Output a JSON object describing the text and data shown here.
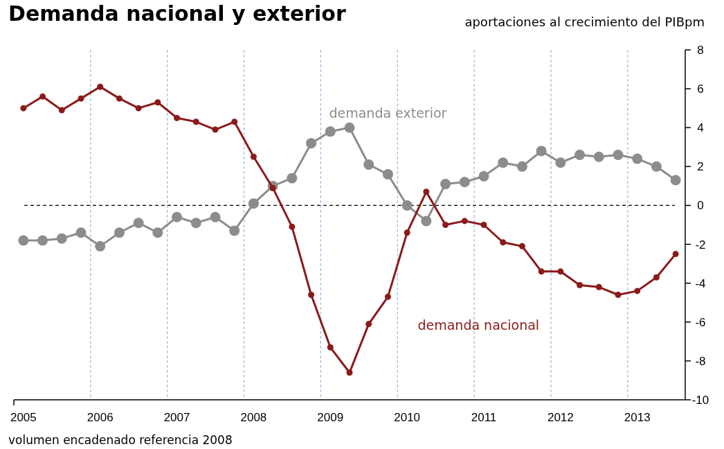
{
  "chart_data": {
    "type": "line",
    "title": "Demanda nacional y exterior",
    "subtitle": "aportaciones al crecimiento del PIBpm",
    "annotations": [
      "volumen encadenado referencia 2008"
    ],
    "categories": [
      "2005",
      null,
      null,
      null,
      "2006",
      null,
      null,
      null,
      "2007",
      null,
      null,
      null,
      "2008",
      null,
      null,
      null,
      "2009",
      null,
      null,
      null,
      "2010",
      null,
      null,
      null,
      "2011",
      null,
      null,
      null,
      "2012",
      null,
      null,
      null,
      "2013",
      null,
      null
    ],
    "series": [
      {
        "name": "demanda exterior",
        "color": "#8c8c8c",
        "values": [
          -1.8,
          -1.8,
          -1.7,
          -1.4,
          -2.1,
          -1.4,
          -0.9,
          -1.4,
          -0.6,
          -0.9,
          -0.6,
          -1.3,
          0.1,
          1.0,
          1.4,
          3.2,
          3.8,
          4.0,
          2.1,
          1.6,
          0.0,
          -0.8,
          1.1,
          1.2,
          1.5,
          2.2,
          2.0,
          2.8,
          2.2,
          2.6,
          2.5,
          2.6,
          2.4,
          2.0,
          1.3
        ]
      },
      {
        "name": "demanda nacional",
        "color": "#8b1a1a",
        "values": [
          5.0,
          5.6,
          4.9,
          5.5,
          6.1,
          5.5,
          5.0,
          5.3,
          4.5,
          4.3,
          3.9,
          4.3,
          2.5,
          0.9,
          -1.1,
          -4.6,
          -7.3,
          -8.6,
          -6.1,
          -4.7,
          -1.4,
          0.7,
          -1.0,
          -0.8,
          -1.0,
          -1.9,
          -2.1,
          -3.4,
          -3.4,
          -4.1,
          -4.2,
          -4.6,
          -4.4,
          -3.7,
          -2.5
        ]
      }
    ],
    "ylim": [
      -10,
      8
    ],
    "yticks": [
      -10,
      -8,
      -6,
      -4,
      -2,
      0,
      2,
      4,
      6,
      8
    ],
    "grid": "x",
    "marker": "circle",
    "line_style": "solid",
    "ref_lines": [
      {
        "axis": "y",
        "value": 0,
        "line_style": "dashed",
        "color": "#000000"
      }
    ]
  }
}
